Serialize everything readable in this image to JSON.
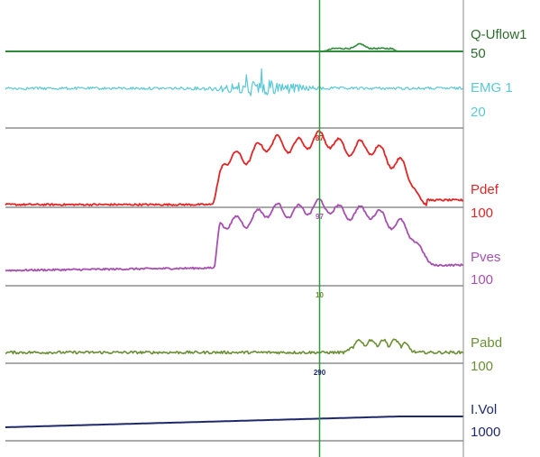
{
  "chart_data": {
    "type": "line",
    "title": "",
    "cursor": {
      "x_fraction": 0.686
    },
    "channels": [
      {
        "name": "Q-Uflow1",
        "scale": "50",
        "color": "#2e8b3a"
      },
      {
        "name": "EMG 1",
        "scale": "20",
        "color": "#5bc8d6"
      },
      {
        "name": "Pdef",
        "scale": "100",
        "color": "#e02626",
        "cursor_value": "87"
      },
      {
        "name": "Pves",
        "scale": "100",
        "color": "#a650b0",
        "cursor_value": "97"
      },
      {
        "name": "Pabd",
        "scale": "100",
        "color": "#6a8f35",
        "cursor_value": "10"
      },
      {
        "name": "I.Vol",
        "scale": "1000",
        "color": "#1f2a6b",
        "cursor_value": "290"
      }
    ]
  }
}
